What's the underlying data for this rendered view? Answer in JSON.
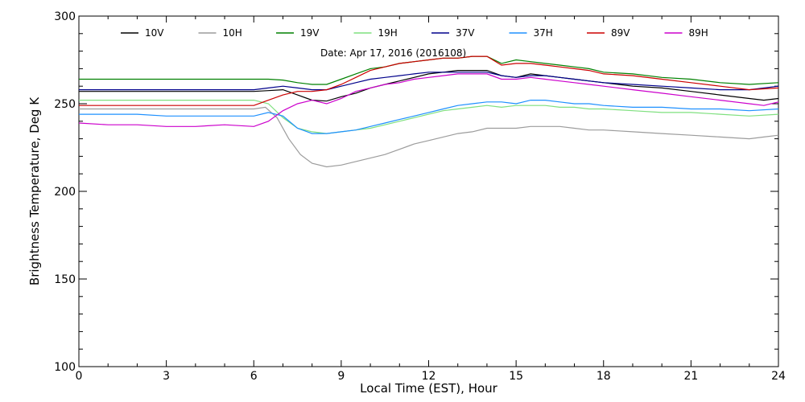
{
  "chart_data": {
    "type": "line",
    "title": "",
    "annotation": "Date: Apr 17, 2016 (2016108)",
    "xlabel": "Local Time (EST), Hour",
    "ylabel": "Brightness Temperature, Deg K",
    "xlim": [
      0,
      24
    ],
    "ylim": [
      100,
      300
    ],
    "xticks": [
      0,
      3,
      6,
      9,
      12,
      15,
      18,
      21,
      24
    ],
    "yticks": [
      100,
      150,
      200,
      250,
      300
    ],
    "grid": false,
    "legend_position": "top",
    "series": [
      {
        "name": "10V",
        "color": "#000000",
        "points": [
          [
            0,
            257
          ],
          [
            1,
            257
          ],
          [
            2,
            257
          ],
          [
            3,
            257
          ],
          [
            4,
            257
          ],
          [
            5,
            257
          ],
          [
            6,
            257
          ],
          [
            6.5,
            257.5
          ],
          [
            7,
            258
          ],
          [
            7.5,
            255
          ],
          [
            8,
            252
          ],
          [
            8.5,
            251.5
          ],
          [
            9,
            254
          ],
          [
            9.5,
            256
          ],
          [
            10,
            259
          ],
          [
            10.5,
            261
          ],
          [
            11,
            263
          ],
          [
            11.5,
            265
          ],
          [
            12,
            267
          ],
          [
            12.5,
            268
          ],
          [
            13,
            269
          ],
          [
            13.5,
            269
          ],
          [
            14,
            269
          ],
          [
            14.5,
            266
          ],
          [
            15,
            265
          ],
          [
            15.5,
            267
          ],
          [
            16,
            266
          ],
          [
            16.5,
            265
          ],
          [
            17,
            264
          ],
          [
            17.5,
            263
          ],
          [
            18,
            262
          ],
          [
            19,
            260
          ],
          [
            20,
            259
          ],
          [
            21,
            257
          ],
          [
            22,
            255
          ],
          [
            23,
            253
          ],
          [
            23.5,
            252
          ],
          [
            24,
            253
          ]
        ]
      },
      {
        "name": "10H",
        "color": "#9c9c9c",
        "points": [
          [
            0,
            247
          ],
          [
            1,
            247
          ],
          [
            2,
            247
          ],
          [
            3,
            247
          ],
          [
            4,
            247
          ],
          [
            5,
            247
          ],
          [
            6,
            247
          ],
          [
            6.4,
            248
          ],
          [
            6.8,
            242
          ],
          [
            7.2,
            230
          ],
          [
            7.6,
            221
          ],
          [
            8,
            216
          ],
          [
            8.5,
            214
          ],
          [
            9,
            215
          ],
          [
            9.5,
            217
          ],
          [
            10,
            219
          ],
          [
            10.5,
            221
          ],
          [
            11,
            224
          ],
          [
            11.5,
            227
          ],
          [
            12,
            229
          ],
          [
            12.5,
            231
          ],
          [
            13,
            233
          ],
          [
            13.5,
            234
          ],
          [
            14,
            236
          ],
          [
            14.5,
            236
          ],
          [
            15,
            236
          ],
          [
            15.5,
            237
          ],
          [
            16,
            237
          ],
          [
            16.5,
            237
          ],
          [
            17,
            236
          ],
          [
            17.5,
            235
          ],
          [
            18,
            235
          ],
          [
            19,
            234
          ],
          [
            20,
            233
          ],
          [
            21,
            232
          ],
          [
            22,
            231
          ],
          [
            23,
            230
          ],
          [
            23.5,
            231
          ],
          [
            24,
            232
          ]
        ]
      },
      {
        "name": "19V",
        "color": "#008000",
        "points": [
          [
            0,
            264
          ],
          [
            1,
            264
          ],
          [
            2,
            264
          ],
          [
            3,
            264
          ],
          [
            4,
            264
          ],
          [
            5,
            264
          ],
          [
            6,
            264
          ],
          [
            6.5,
            264
          ],
          [
            7,
            263.5
          ],
          [
            7.5,
            262
          ],
          [
            8,
            261
          ],
          [
            8.5,
            261
          ],
          [
            9,
            264
          ],
          [
            9.5,
            267
          ],
          [
            10,
            270
          ],
          [
            10.5,
            271
          ],
          [
            11,
            273
          ],
          [
            11.5,
            274
          ],
          [
            12,
            275
          ],
          [
            12.5,
            276
          ],
          [
            13,
            276
          ],
          [
            13.5,
            277
          ],
          [
            14,
            277
          ],
          [
            14.5,
            273
          ],
          [
            15,
            275
          ],
          [
            15.5,
            274
          ],
          [
            16,
            273
          ],
          [
            16.5,
            272
          ],
          [
            17,
            271
          ],
          [
            17.5,
            270
          ],
          [
            18,
            268
          ],
          [
            19,
            267
          ],
          [
            20,
            265
          ],
          [
            21,
            264
          ],
          [
            22,
            262
          ],
          [
            23,
            261
          ],
          [
            24,
            262
          ]
        ]
      },
      {
        "name": "19H",
        "color": "#7fe07f",
        "points": [
          [
            0,
            252
          ],
          [
            1,
            252
          ],
          [
            2,
            252
          ],
          [
            3,
            252
          ],
          [
            4,
            252
          ],
          [
            5,
            252
          ],
          [
            6,
            252
          ],
          [
            6.5,
            250
          ],
          [
            7,
            242
          ],
          [
            7.5,
            236
          ],
          [
            8,
            234
          ],
          [
            8.5,
            233
          ],
          [
            9,
            234
          ],
          [
            9.5,
            235
          ],
          [
            10,
            236
          ],
          [
            10.5,
            238
          ],
          [
            11,
            240
          ],
          [
            11.5,
            242
          ],
          [
            12,
            244
          ],
          [
            12.5,
            246
          ],
          [
            13,
            247
          ],
          [
            13.5,
            248
          ],
          [
            14,
            249
          ],
          [
            14.5,
            248
          ],
          [
            15,
            249
          ],
          [
            15.5,
            249
          ],
          [
            16,
            249
          ],
          [
            16.5,
            248
          ],
          [
            17,
            248
          ],
          [
            17.5,
            247
          ],
          [
            18,
            247
          ],
          [
            19,
            246
          ],
          [
            20,
            245
          ],
          [
            21,
            245
          ],
          [
            22,
            244
          ],
          [
            23,
            243
          ],
          [
            24,
            244
          ]
        ]
      },
      {
        "name": "37V",
        "color": "#00008b",
        "points": [
          [
            0,
            258
          ],
          [
            1,
            258
          ],
          [
            2,
            258
          ],
          [
            3,
            258
          ],
          [
            4,
            258
          ],
          [
            5,
            258
          ],
          [
            6,
            258
          ],
          [
            6.5,
            259
          ],
          [
            7,
            260
          ],
          [
            7.5,
            259
          ],
          [
            8,
            258
          ],
          [
            8.5,
            258
          ],
          [
            9,
            260
          ],
          [
            9.5,
            262
          ],
          [
            10,
            264
          ],
          [
            10.5,
            265
          ],
          [
            11,
            266
          ],
          [
            11.5,
            267
          ],
          [
            12,
            268
          ],
          [
            12.5,
            268
          ],
          [
            13,
            268
          ],
          [
            13.5,
            268
          ],
          [
            14,
            268
          ],
          [
            14.5,
            266
          ],
          [
            15,
            265
          ],
          [
            15.5,
            266
          ],
          [
            16,
            266
          ],
          [
            16.5,
            265
          ],
          [
            17,
            264
          ],
          [
            17.5,
            263
          ],
          [
            18,
            262
          ],
          [
            19,
            261
          ],
          [
            20,
            260
          ],
          [
            21,
            259
          ],
          [
            22,
            258
          ],
          [
            23,
            258
          ],
          [
            24,
            260
          ]
        ]
      },
      {
        "name": "37H",
        "color": "#1e90ff",
        "points": [
          [
            0,
            244
          ],
          [
            1,
            244
          ],
          [
            2,
            244
          ],
          [
            3,
            243
          ],
          [
            4,
            243
          ],
          [
            5,
            243
          ],
          [
            6,
            243
          ],
          [
            6.5,
            245
          ],
          [
            7,
            243
          ],
          [
            7.5,
            236
          ],
          [
            8,
            233
          ],
          [
            8.5,
            233
          ],
          [
            9,
            234
          ],
          [
            9.5,
            235
          ],
          [
            10,
            237
          ],
          [
            10.5,
            239
          ],
          [
            11,
            241
          ],
          [
            11.5,
            243
          ],
          [
            12,
            245
          ],
          [
            12.5,
            247
          ],
          [
            13,
            249
          ],
          [
            13.5,
            250
          ],
          [
            14,
            251
          ],
          [
            14.5,
            251
          ],
          [
            15,
            250
          ],
          [
            15.5,
            252
          ],
          [
            16,
            252
          ],
          [
            16.5,
            251
          ],
          [
            17,
            250
          ],
          [
            17.5,
            250
          ],
          [
            18,
            249
          ],
          [
            19,
            248
          ],
          [
            20,
            248
          ],
          [
            21,
            247
          ],
          [
            22,
            247
          ],
          [
            23,
            246
          ],
          [
            24,
            247
          ]
        ]
      },
      {
        "name": "89V",
        "color": "#cc0000",
        "points": [
          [
            0,
            249
          ],
          [
            1,
            249
          ],
          [
            2,
            249
          ],
          [
            3,
            249
          ],
          [
            4,
            249
          ],
          [
            5,
            249
          ],
          [
            6,
            249
          ],
          [
            6.5,
            252
          ],
          [
            7,
            255
          ],
          [
            7.5,
            257
          ],
          [
            8,
            257
          ],
          [
            8.5,
            258
          ],
          [
            9,
            261
          ],
          [
            9.5,
            265
          ],
          [
            10,
            269
          ],
          [
            10.5,
            271
          ],
          [
            11,
            273
          ],
          [
            11.5,
            274
          ],
          [
            12,
            275
          ],
          [
            12.5,
            276
          ],
          [
            13,
            276
          ],
          [
            13.5,
            277
          ],
          [
            14,
            277
          ],
          [
            14.5,
            272
          ],
          [
            15,
            273
          ],
          [
            15.5,
            273
          ],
          [
            16,
            272
          ],
          [
            16.5,
            271
          ],
          [
            17,
            270
          ],
          [
            17.5,
            269
          ],
          [
            18,
            267
          ],
          [
            19,
            266
          ],
          [
            20,
            264
          ],
          [
            21,
            262
          ],
          [
            22,
            260
          ],
          [
            23,
            258
          ],
          [
            24,
            259
          ]
        ]
      },
      {
        "name": "89H",
        "color": "#cc00cc",
        "points": [
          [
            0,
            239
          ],
          [
            1,
            238
          ],
          [
            2,
            238
          ],
          [
            3,
            237
          ],
          [
            4,
            237
          ],
          [
            5,
            238
          ],
          [
            6,
            237
          ],
          [
            6.5,
            240
          ],
          [
            7,
            246
          ],
          [
            7.5,
            250
          ],
          [
            8,
            252
          ],
          [
            8.5,
            250
          ],
          [
            9,
            253
          ],
          [
            9.5,
            257
          ],
          [
            10,
            259
          ],
          [
            10.5,
            261
          ],
          [
            11,
            262
          ],
          [
            11.5,
            264
          ],
          [
            12,
            265
          ],
          [
            12.5,
            266
          ],
          [
            13,
            267
          ],
          [
            13.5,
            267
          ],
          [
            14,
            267
          ],
          [
            14.5,
            264
          ],
          [
            15,
            264
          ],
          [
            15.5,
            265
          ],
          [
            16,
            264
          ],
          [
            16.5,
            263
          ],
          [
            17,
            262
          ],
          [
            17.5,
            261
          ],
          [
            18,
            260
          ],
          [
            19,
            258
          ],
          [
            20,
            256
          ],
          [
            21,
            254
          ],
          [
            22,
            252
          ],
          [
            23,
            250
          ],
          [
            23.5,
            249
          ],
          [
            24,
            251
          ]
        ]
      }
    ]
  }
}
